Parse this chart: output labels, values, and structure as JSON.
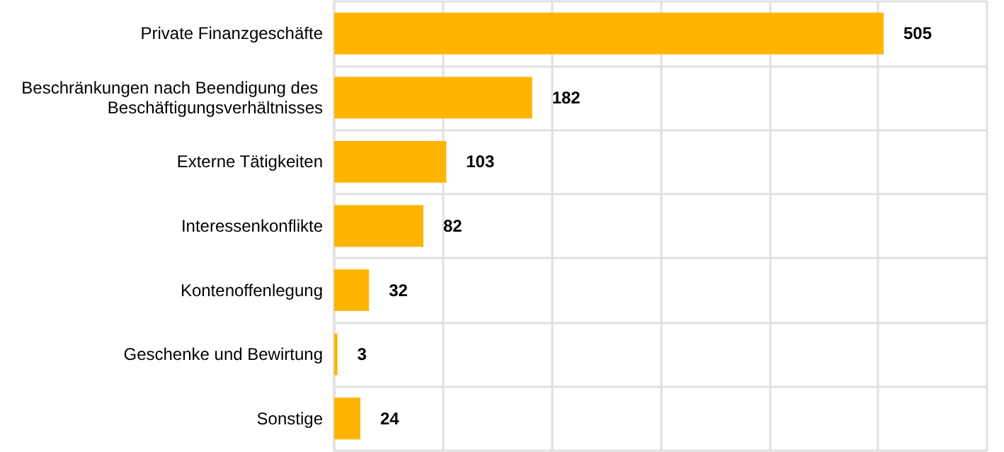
{
  "chart_data": {
    "type": "bar",
    "orientation": "horizontal",
    "categories": [
      "Private Finanzgeschäfte",
      "Beschränkungen nach Beendigung des Beschäftigungsverhältnisses",
      "Externe Tätigkeiten",
      "Interessenkonflikte",
      "Kontenoffenlegung",
      "Geschenke und Bewirtung",
      "Sonstige"
    ],
    "values": [
      505,
      182,
      103,
      82,
      32,
      3,
      24
    ],
    "color": "#ffb400",
    "xlim": [
      0,
      600
    ],
    "xticks": [
      0,
      100,
      200,
      300,
      400,
      500,
      600
    ],
    "tick_labels": "y",
    "grid": true,
    "data_labels": true
  }
}
